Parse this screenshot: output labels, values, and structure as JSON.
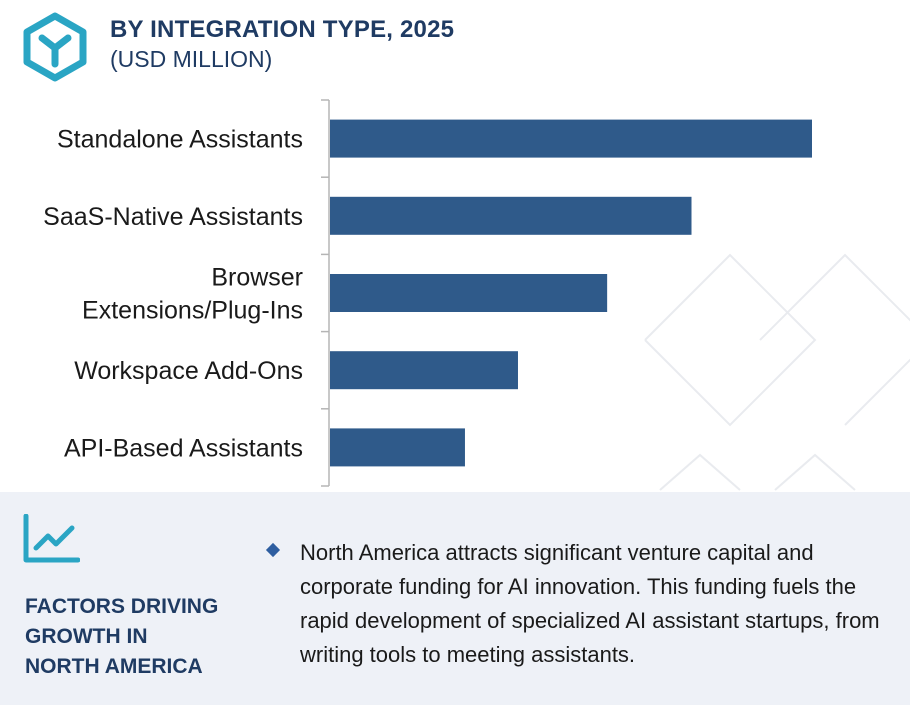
{
  "header": {
    "title": "BY INTEGRATION TYPE, 2025",
    "subtitle": "(USD MILLION)",
    "logo_icon": "hexagon-y-logo-icon"
  },
  "colors": {
    "bar": "#2f5a8a",
    "title": "#1f3b63",
    "accent": "#2aa5c4",
    "panel_bg": "#eef1f7"
  },
  "chart_data": {
    "type": "bar",
    "orientation": "horizontal",
    "title": "BY INTEGRATION TYPE, 2025",
    "subtitle": "(USD MILLION)",
    "categories": [
      [
        "Standalone Assistants"
      ],
      [
        "SaaS-Native Assistants"
      ],
      [
        "Browser",
        "Extensions/Plug-Ins"
      ],
      [
        "Workspace Add-Ons"
      ],
      [
        "API-Based Assistants"
      ]
    ],
    "values": [
      100,
      75,
      57.5,
      39,
      28
    ],
    "xlim": [
      0,
      100
    ],
    "grid": false,
    "legend": "none"
  },
  "factors": {
    "icon": "line-chart-growth-icon",
    "title_lines": [
      "FACTORS DRIVING",
      "GROWTH IN",
      "NORTH AMERICA"
    ],
    "bullets": [
      "North America attracts significant venture capital and corporate funding for AI innovation. This funding fuels the rapid development of specialized AI assistant startups, from writing tools to meeting assistants."
    ]
  }
}
